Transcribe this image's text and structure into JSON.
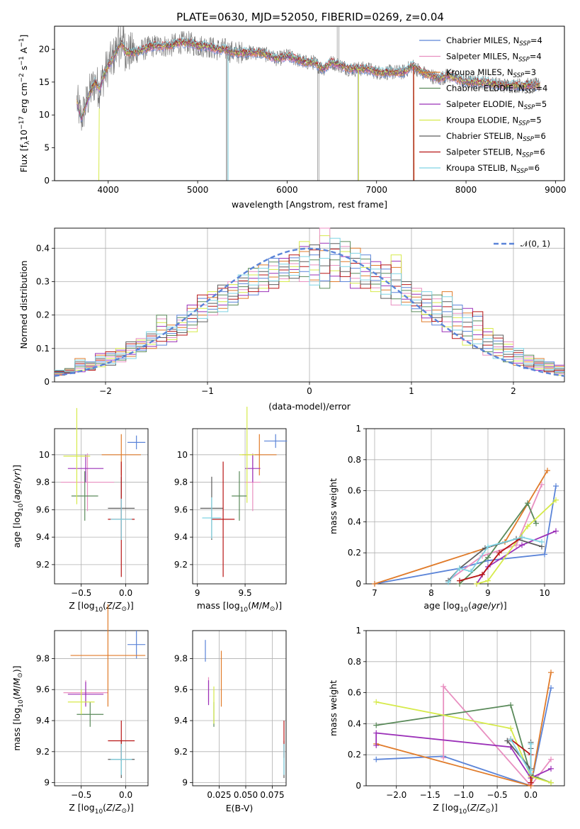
{
  "figure": {
    "title": "PLATE=0630, MJD=52050, FIBERID=0269, z=0.04",
    "colors": {
      "Chabrier MILES": "#5b84d8",
      "Salpeter MILES": "#e88fc0",
      "Kroupa MILES": "#e07b2a",
      "Chabrier ELODIE": "#5a8a5a",
      "Salpeter ELODIE": "#9b30b8",
      "Kroupa ELODIE": "#d6ea4a",
      "Chabrier STELIB": "#5e5e5e",
      "Salpeter STELIB": "#b81515",
      "Kroupa STELIB": "#7fd3e3"
    }
  },
  "chart_data": [
    {
      "id": "spectrum",
      "type": "line",
      "xlabel": "wavelength [Angstrom, rest frame]",
      "ylabel": "Flux [f_λ10^-17 erg cm^-2 s^-1 A^-1]",
      "xlim": [
        3400,
        9100
      ],
      "ylim": [
        0,
        23.5
      ],
      "xticks": [
        4000,
        5000,
        6000,
        7000,
        8000,
        9000
      ],
      "yticks": [
        0,
        5,
        10,
        15,
        20
      ],
      "legend_position": "upper-right",
      "series": [
        {
          "name": "Chabrier MILES",
          "label_main": "Chabrier MILES, N",
          "label_sub": "SSP",
          "label_tail": "=4"
        },
        {
          "name": "Salpeter MILES",
          "label_main": "Salpeter MILES, N",
          "label_sub": "SSP",
          "label_tail": "=4"
        },
        {
          "name": "Kroupa MILES",
          "label_main": "Kroupa MILES, N",
          "label_sub": "SSP",
          "label_tail": "=3"
        },
        {
          "name": "Chabrier ELODIE",
          "label_main": "Chabrier ELODIE, N",
          "label_sub": "SSP",
          "label_tail": "=4"
        },
        {
          "name": "Salpeter ELODIE",
          "label_main": "Salpeter ELODIE, N",
          "label_sub": "SSP",
          "label_tail": "=5"
        },
        {
          "name": "Kroupa ELODIE",
          "label_main": "Kroupa ELODIE, N",
          "label_sub": "SSP",
          "label_tail": "=5"
        },
        {
          "name": "Chabrier STELIB",
          "label_main": "Chabrier STELIB, N",
          "label_sub": "SSP",
          "label_tail": "=6"
        },
        {
          "name": "Salpeter STELIB",
          "label_main": "Salpeter STELIB, N",
          "label_sub": "SSP",
          "label_tail": "=6"
        },
        {
          "name": "Kroupa STELIB",
          "label_main": "Kroupa STELIB, N",
          "label_sub": "SSP",
          "label_tail": "=6"
        }
      ],
      "data_envelope": {
        "x": [
          3650,
          3700,
          3800,
          3850,
          3900,
          3950,
          4000,
          4050,
          4100,
          4150,
          4200,
          4300,
          4400,
          4500,
          4600,
          4700,
          4800,
          4900,
          5000,
          5100,
          5200,
          5300,
          5400,
          5500,
          5600,
          5700,
          5800,
          5900,
          6000,
          6100,
          6200,
          6300,
          6400,
          6500,
          6600,
          6700,
          6800,
          6900,
          7000,
          7100,
          7200,
          7300,
          7400,
          7500,
          7600,
          7700,
          7800,
          7900,
          8000,
          8200,
          8400,
          8600,
          8800
        ],
        "y": [
          12.0,
          9.5,
          13.5,
          15.0,
          14.0,
          16.0,
          17.5,
          18.5,
          20.0,
          21.0,
          19.5,
          19.5,
          20.0,
          20.5,
          20.5,
          20.5,
          21.0,
          21.0,
          20.5,
          20.5,
          20.0,
          20.0,
          19.5,
          19.5,
          19.5,
          19.5,
          19.0,
          18.5,
          19.0,
          18.5,
          18.0,
          18.0,
          17.0,
          18.0,
          17.5,
          17.0,
          17.0,
          17.0,
          16.5,
          16.5,
          16.5,
          16.5,
          17.5,
          16.5,
          16.0,
          15.5,
          16.0,
          15.5,
          15.0,
          15.0,
          14.5,
          14.5,
          14.5
        ]
      }
    },
    {
      "id": "residuals",
      "type": "area",
      "xlabel": "(data-model)/error",
      "ylabel": "Normed distribution",
      "xlim": [
        -2.5,
        2.5
      ],
      "ylim": [
        0,
        0.46
      ],
      "xticks": [
        -2,
        -1,
        0,
        1,
        2
      ],
      "yticks": [
        0.0,
        0.1,
        0.2,
        0.3,
        0.4
      ],
      "legend_position": "upper-right",
      "legend_label": "𝒩(0, 1)",
      "bins_left": [
        -2.5,
        -2.4,
        -2.3,
        -2.2,
        -2.1,
        -2.0,
        -1.9,
        -1.8,
        -1.7,
        -1.6,
        -1.5,
        -1.4,
        -1.3,
        -1.2,
        -1.1,
        -1.0,
        -0.9,
        -0.8,
        -0.7,
        -0.6,
        -0.5,
        -0.4,
        -0.3,
        -0.2,
        -0.1,
        0.0,
        0.1,
        0.2,
        0.3,
        0.4,
        0.5,
        0.6,
        0.7,
        0.8,
        0.9,
        1.0,
        1.1,
        1.2,
        1.3,
        1.4,
        1.5,
        1.6,
        1.7,
        1.8,
        1.9,
        2.0,
        2.1,
        2.2,
        2.3,
        2.4
      ],
      "max_values": [
        0.035,
        0.04,
        0.07,
        0.06,
        0.085,
        0.09,
        0.1,
        0.12,
        0.13,
        0.15,
        0.2,
        0.17,
        0.2,
        0.23,
        0.26,
        0.27,
        0.29,
        0.3,
        0.32,
        0.34,
        0.35,
        0.37,
        0.37,
        0.38,
        0.42,
        0.41,
        0.46,
        0.43,
        0.42,
        0.4,
        0.38,
        0.36,
        0.35,
        0.38,
        0.3,
        0.28,
        0.27,
        0.26,
        0.27,
        0.23,
        0.22,
        0.21,
        0.16,
        0.14,
        0.12,
        0.1,
        0.08,
        0.07,
        0.06,
        0.05
      ],
      "min_values": [
        0.02,
        0.025,
        0.03,
        0.035,
        0.045,
        0.05,
        0.06,
        0.07,
        0.09,
        0.1,
        0.11,
        0.12,
        0.14,
        0.15,
        0.18,
        0.2,
        0.21,
        0.23,
        0.25,
        0.26,
        0.27,
        0.28,
        0.3,
        0.31,
        0.3,
        0.29,
        0.28,
        0.3,
        0.3,
        0.28,
        0.28,
        0.27,
        0.25,
        0.23,
        0.23,
        0.21,
        0.18,
        0.17,
        0.15,
        0.13,
        0.11,
        0.1,
        0.08,
        0.07,
        0.06,
        0.05,
        0.04,
        0.035,
        0.03,
        0.02
      ]
    },
    {
      "id": "age_vs_Z",
      "type": "scatter",
      "xlabel": "Z [log10(Z/Z☉)]",
      "ylabel": "age  [log10(age/yr)]",
      "xlim": [
        -0.8,
        0.25
      ],
      "ylim": [
        9.06,
        10.19
      ],
      "xticks": [
        -0.5,
        0.0
      ],
      "xticklabels": [
        "−0.5",
        "0.0"
      ],
      "yticks": [
        9.2,
        9.4,
        9.6,
        9.8,
        10.0
      ],
      "points": [
        {
          "name": "Chabrier MILES",
          "x": 0.12,
          "y": 10.09,
          "xerr": 0.1,
          "yerr": 0.05
        },
        {
          "name": "Salpeter MILES",
          "x": -0.43,
          "y": 9.8,
          "xerr": 0.3,
          "yerr": 0.21
        },
        {
          "name": "Kroupa MILES",
          "x": -0.05,
          "y": 10.0,
          "xerr": 0.22,
          "yerr": 0.15
        },
        {
          "name": "Chabrier ELODIE",
          "x": -0.46,
          "y": 9.7,
          "xerr": 0.15,
          "yerr": 0.18
        },
        {
          "name": "Salpeter ELODIE",
          "x": -0.45,
          "y": 9.9,
          "xerr": 0.2,
          "yerr": 0.1
        },
        {
          "name": "Kroupa ELODIE",
          "x": -0.55,
          "y": 9.99,
          "xerr": 0.15,
          "yerr": 0.35
        },
        {
          "name": "Chabrier STELIB",
          "x": -0.05,
          "y": 9.61,
          "xerr": 0.15,
          "yerr": 0.23
        },
        {
          "name": "Salpeter STELIB",
          "x": -0.05,
          "y": 9.53,
          "xerr": 0.15,
          "yerr": 0.42
        },
        {
          "name": "Kroupa STELIB",
          "x": -0.05,
          "y": 9.53,
          "xerr": 0.12,
          "yerr": 0.15
        }
      ]
    },
    {
      "id": "age_vs_mass",
      "type": "scatter",
      "xlabel": "mass [log10(M/M☉)]",
      "ylabel": "",
      "xlim": [
        8.95,
        9.93
      ],
      "ylim": [
        9.06,
        10.19
      ],
      "xticks": [
        9.0,
        9.5
      ],
      "yticks": [
        9.2,
        9.4,
        9.6,
        9.8,
        10.0
      ],
      "points": [
        {
          "name": "Chabrier MILES",
          "x": 9.82,
          "y": 10.1,
          "xerr": 0.12,
          "yerr": 0.05
        },
        {
          "name": "Salpeter MILES",
          "x": 9.58,
          "y": 9.8,
          "xerr": 0.08,
          "yerr": 0.21
        },
        {
          "name": "Kroupa MILES",
          "x": 9.65,
          "y": 10.0,
          "xerr": 0.18,
          "yerr": 0.15
        },
        {
          "name": "Chabrier ELODIE",
          "x": 9.44,
          "y": 9.7,
          "xerr": 0.08,
          "yerr": 0.18
        },
        {
          "name": "Salpeter ELODIE",
          "x": 9.58,
          "y": 9.9,
          "xerr": 0.08,
          "yerr": 0.1
        },
        {
          "name": "Kroupa ELODIE",
          "x": 9.52,
          "y": 10.0,
          "xerr": 0.08,
          "yerr": 0.35
        },
        {
          "name": "Chabrier STELIB",
          "x": 9.15,
          "y": 9.61,
          "xerr": 0.12,
          "yerr": 0.23
        },
        {
          "name": "Salpeter STELIB",
          "x": 9.27,
          "y": 9.53,
          "xerr": 0.12,
          "yerr": 0.42
        },
        {
          "name": "Kroupa STELIB",
          "x": 9.15,
          "y": 9.54,
          "xerr": 0.1,
          "yerr": 0.15
        }
      ]
    },
    {
      "id": "mass_weight_vs_age",
      "type": "line",
      "xlabel": "age  [log10(age/yr)]",
      "ylabel": "mass weight",
      "xlim": [
        6.85,
        10.35
      ],
      "ylim": [
        0,
        1.0
      ],
      "xticks": [
        7,
        8,
        9,
        10
      ],
      "yticks": [
        0.0,
        0.2,
        0.4,
        0.6,
        0.8,
        1.0
      ],
      "series": [
        {
          "name": "Chabrier MILES",
          "x": [
            7.0,
            8.5,
            9.0,
            10.0,
            10.2
          ],
          "y": [
            0.0,
            0.1,
            0.15,
            0.19,
            0.63
          ]
        },
        {
          "name": "Salpeter MILES",
          "x": [
            8.3,
            8.9,
            9.5,
            9.95
          ],
          "y": [
            0.02,
            0.18,
            0.25,
            0.64
          ]
        },
        {
          "name": "Kroupa MILES",
          "x": [
            7.0,
            9.3,
            10.05
          ],
          "y": [
            0.0,
            0.27,
            0.73
          ]
        },
        {
          "name": "Chabrier ELODIE",
          "x": [
            8.5,
            9.0,
            9.7,
            9.85
          ],
          "y": [
            0.0,
            0.17,
            0.52,
            0.39
          ]
        },
        {
          "name": "Salpeter ELODIE",
          "x": [
            8.8,
            9.0,
            9.6,
            10.2
          ],
          "y": [
            0.0,
            0.11,
            0.25,
            0.34
          ]
        },
        {
          "name": "Kroupa ELODIE",
          "x": [
            8.8,
            9.0,
            9.7,
            10.2
          ],
          "y": [
            0.0,
            0.02,
            0.37,
            0.54
          ]
        },
        {
          "name": "Chabrier STELIB",
          "x": [
            8.3,
            8.5,
            8.95,
            9.5,
            9.95
          ],
          "y": [
            0.02,
            0.1,
            0.23,
            0.29,
            0.24
          ]
        },
        {
          "name": "Salpeter STELIB",
          "x": [
            8.5,
            8.9,
            9.2,
            9.6
          ],
          "y": [
            0.02,
            0.06,
            0.2,
            0.3
          ]
        },
        {
          "name": "Kroupa STELIB",
          "x": [
            8.3,
            8.5,
            8.7,
            9.0,
            9.6,
            9.95
          ],
          "y": [
            0.01,
            0.1,
            0.08,
            0.24,
            0.3,
            0.27
          ]
        }
      ]
    },
    {
      "id": "mass_vs_Z",
      "type": "scatter",
      "xlabel": "Z [log10(Z/Z☉)]",
      "ylabel": "mass [log10(M/M☉)]",
      "xlim": [
        -0.8,
        0.25
      ],
      "ylim": [
        8.98,
        9.98
      ],
      "xticks": [
        -0.5,
        0.0
      ],
      "xticklabels": [
        "−0.5",
        "0.0"
      ],
      "yticks": [
        9.0,
        9.2,
        9.4,
        9.6,
        9.8
      ],
      "points": [
        {
          "name": "Chabrier MILES",
          "x": 0.12,
          "y": 9.89,
          "xerr": 0.1,
          "yerr": 0.09
        },
        {
          "name": "Salpeter MILES",
          "x": -0.45,
          "y": 9.58,
          "xerr": 0.25,
          "yerr": 0.08
        },
        {
          "name": "Kroupa MILES",
          "x": -0.2,
          "y": 9.82,
          "xerr": 0.42,
          "yerr": 0.33
        },
        {
          "name": "Chabrier ELODIE",
          "x": -0.4,
          "y": 9.44,
          "xerr": 0.15,
          "yerr": 0.08
        },
        {
          "name": "Salpeter ELODIE",
          "x": -0.45,
          "y": 9.57,
          "xerr": 0.2,
          "yerr": 0.08
        },
        {
          "name": "Kroupa ELODIE",
          "x": -0.5,
          "y": 9.52,
          "xerr": 0.15,
          "yerr": 0.08
        },
        {
          "name": "Chabrier STELIB",
          "x": -0.05,
          "y": 9.15,
          "xerr": 0.15,
          "yerr": 0.12
        },
        {
          "name": "Salpeter STELIB",
          "x": -0.05,
          "y": 9.27,
          "xerr": 0.15,
          "yerr": 0.13
        },
        {
          "name": "Kroupa STELIB",
          "x": -0.05,
          "y": 9.15,
          "xerr": 0.12,
          "yerr": 0.1
        }
      ]
    },
    {
      "id": "mass_vs_ebv",
      "type": "scatter",
      "xlabel": "E(B-V)",
      "ylabel": "",
      "xlim": [
        0.0,
        0.088
      ],
      "ylim": [
        8.98,
        9.98
      ],
      "xticks": [
        0.025,
        0.05,
        0.075
      ],
      "xticklabels": [
        "0.025",
        "0.050",
        "0.075"
      ],
      "yticks": [
        9.0,
        9.2,
        9.4,
        9.6,
        9.8
      ],
      "points": [
        {
          "name": "Chabrier MILES",
          "x": 0.012,
          "y": 9.85,
          "yerr": 0.07
        },
        {
          "name": "Salpeter MILES",
          "x": 0.015,
          "y": 9.6,
          "yerr": 0.08
        },
        {
          "name": "Kroupa MILES",
          "x": 0.027,
          "y": 9.67,
          "yerr": 0.18
        },
        {
          "name": "Chabrier ELODIE",
          "x": 0.02,
          "y": 9.44,
          "yerr": 0.08
        },
        {
          "name": "Salpeter ELODIE",
          "x": 0.015,
          "y": 9.58,
          "yerr": 0.08
        },
        {
          "name": "Kroupa ELODIE",
          "x": 0.02,
          "y": 9.5,
          "yerr": 0.12
        },
        {
          "name": "Chabrier STELIB",
          "x": 0.086,
          "y": 9.15,
          "yerr": 0.12
        },
        {
          "name": "Salpeter STELIB",
          "x": 0.086,
          "y": 9.28,
          "yerr": 0.12
        },
        {
          "name": "Kroupa STELIB",
          "x": 0.086,
          "y": 9.15,
          "yerr": 0.1
        }
      ]
    },
    {
      "id": "mass_weight_vs_Z",
      "type": "line",
      "xlabel": "Z [log10(Z/Z☉)]",
      "ylabel": "mass weight",
      "xlim": [
        -2.45,
        0.5
      ],
      "ylim": [
        0,
        1.0
      ],
      "xticks": [
        -2.0,
        -1.5,
        -1.0,
        -0.5,
        0.0
      ],
      "xticklabels": [
        "−2.0",
        "−1.5",
        "−1.0",
        "−0.5",
        "0.0"
      ],
      "yticks": [
        0.0,
        0.2,
        0.4,
        0.6,
        0.8,
        1.0
      ],
      "series": [
        {
          "name": "Chabrier MILES",
          "x": [
            -2.3,
            -1.3,
            0.0,
            0.3
          ],
          "y": [
            0.17,
            0.19,
            0.0,
            0.63
          ]
        },
        {
          "name": "Salpeter MILES",
          "x": [
            -1.3,
            -1.3,
            0.0,
            0.3
          ],
          "y": [
            0.18,
            0.64,
            0.0,
            0.17
          ]
        },
        {
          "name": "Kroupa MILES",
          "x": [
            -2.3,
            0.0,
            0.3
          ],
          "y": [
            0.27,
            0.0,
            0.73
          ]
        },
        {
          "name": "Chabrier ELODIE",
          "x": [
            -2.3,
            -0.3,
            0.0,
            0.3
          ],
          "y": [
            0.39,
            0.52,
            0.07,
            0.02
          ]
        },
        {
          "name": "Salpeter ELODIE",
          "x": [
            -2.3,
            -2.3,
            -0.3,
            0.0,
            0.3
          ],
          "y": [
            0.26,
            0.34,
            0.25,
            0.05,
            0.11
          ]
        },
        {
          "name": "Kroupa ELODIE",
          "x": [
            -2.3,
            -0.3,
            0.0,
            0.3
          ],
          "y": [
            0.54,
            0.37,
            0.06,
            0.02
          ]
        },
        {
          "name": "Chabrier STELIB",
          "x": [
            -0.35,
            0.0,
            0.0,
            0.0
          ],
          "y": [
            0.29,
            0.11,
            0.24,
            0.28
          ]
        },
        {
          "name": "Salpeter STELIB",
          "x": [
            -0.3,
            0.0,
            0.0
          ],
          "y": [
            0.3,
            0.2,
            0.02
          ]
        },
        {
          "name": "Kroupa STELIB",
          "x": [
            -0.3,
            0.0,
            0.0,
            0.0
          ],
          "y": [
            0.3,
            0.08,
            0.1,
            0.27
          ]
        }
      ]
    }
  ]
}
